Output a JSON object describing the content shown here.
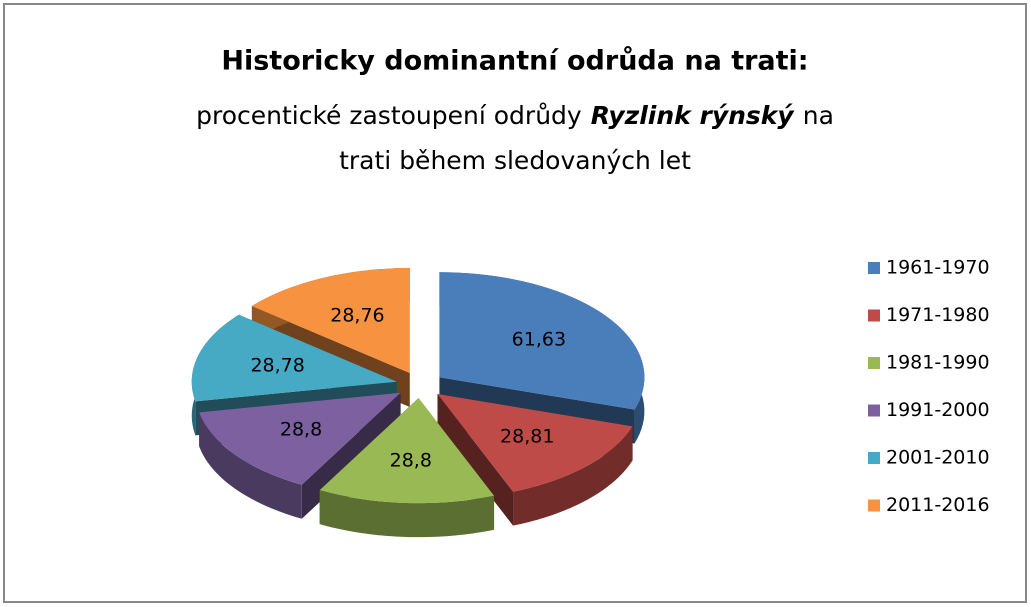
{
  "chart_data": {
    "type": "pie",
    "title": "Historicky dominantní odrůda na trati:",
    "subtitle_lines": [
      [
        "procentické zastoupení odrůdy",
        "Ryzlink rýnský",
        "na"
      ],
      [
        "trati během sledovaných  let"
      ]
    ],
    "categories": [
      "1961-1970",
      "1971-1980",
      "1981-1990",
      "1991-2000",
      "2001-2010",
      "2011-2016"
    ],
    "values": [
      61.63,
      28.81,
      28.8,
      28.8,
      28.78,
      28.76
    ],
    "value_labels": [
      "61,63",
      "28,81",
      "28,8",
      "28,8",
      "28,78",
      "28,76"
    ],
    "colors": [
      "#4a7ebb",
      "#be4b48",
      "#98b954",
      "#7d60a0",
      "#46aac5",
      "#f69240"
    ],
    "legend": "right"
  }
}
